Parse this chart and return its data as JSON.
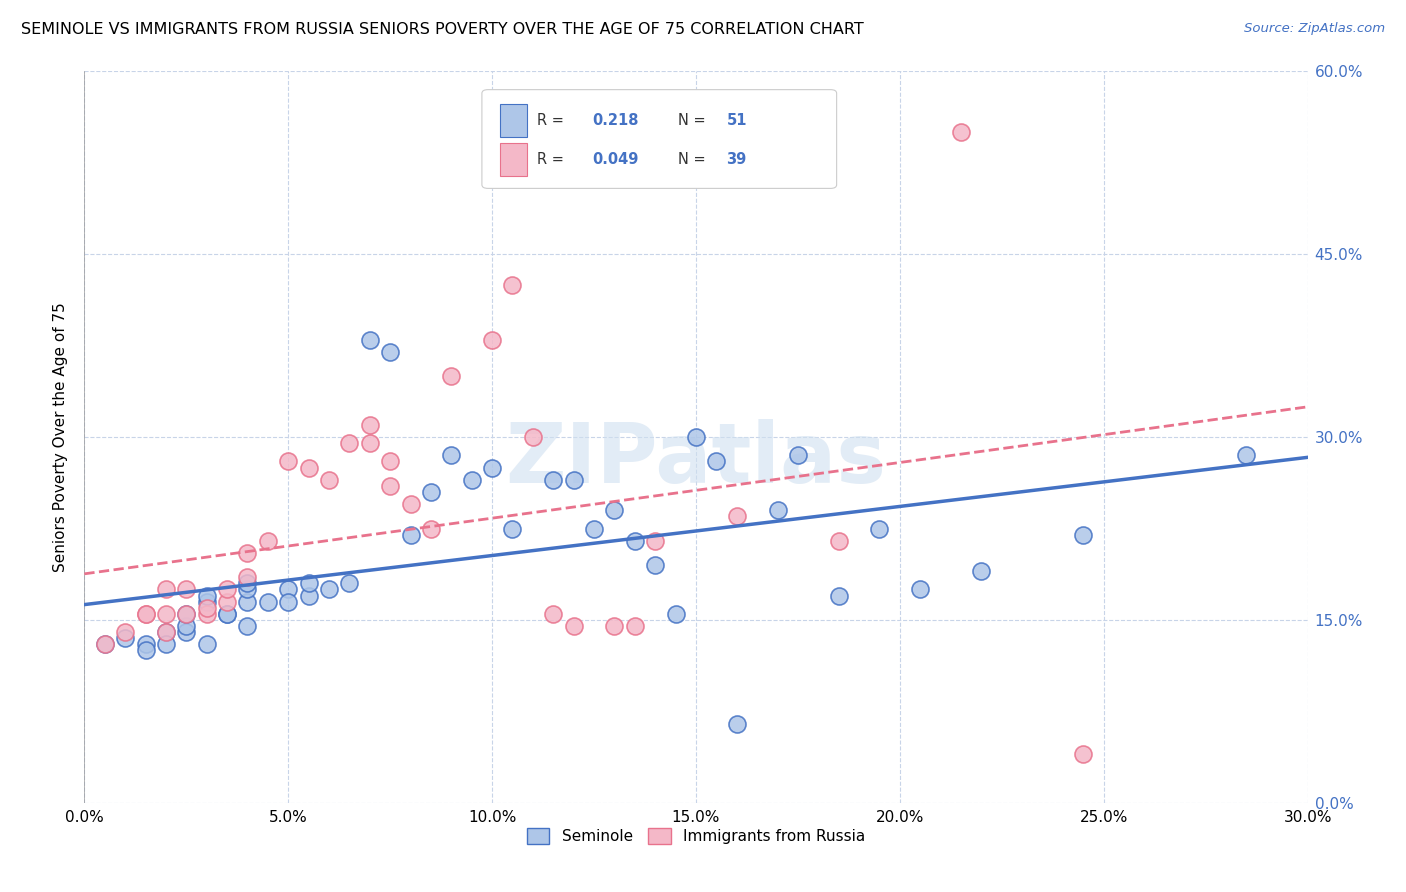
{
  "title": "SEMINOLE VS IMMIGRANTS FROM RUSSIA SENIORS POVERTY OVER THE AGE OF 75 CORRELATION CHART",
  "source": "Source: ZipAtlas.com",
  "xlim": [
    0.0,
    0.3
  ],
  "ylim": [
    0.0,
    0.6
  ],
  "ylabel": "Seniors Poverty Over the Age of 75",
  "legend_labels": [
    "Seminole",
    "Immigrants from Russia"
  ],
  "seminole_color": "#aec6e8",
  "russia_color": "#f4b8c8",
  "seminole_line_color": "#4472c4",
  "russia_line_color": "#e8728c",
  "watermark": "ZIPatlas",
  "seminole_x": [
    0.005,
    0.01,
    0.015,
    0.015,
    0.02,
    0.02,
    0.025,
    0.025,
    0.025,
    0.03,
    0.03,
    0.03,
    0.035,
    0.035,
    0.04,
    0.04,
    0.04,
    0.04,
    0.045,
    0.05,
    0.05,
    0.055,
    0.055,
    0.06,
    0.065,
    0.07,
    0.075,
    0.08,
    0.085,
    0.09,
    0.095,
    0.1,
    0.105,
    0.115,
    0.12,
    0.125,
    0.13,
    0.135,
    0.14,
    0.145,
    0.15,
    0.155,
    0.16,
    0.17,
    0.175,
    0.185,
    0.195,
    0.205,
    0.22,
    0.245,
    0.285
  ],
  "seminole_y": [
    0.13,
    0.135,
    0.13,
    0.125,
    0.14,
    0.13,
    0.14,
    0.145,
    0.155,
    0.13,
    0.165,
    0.17,
    0.155,
    0.155,
    0.145,
    0.165,
    0.175,
    0.18,
    0.165,
    0.175,
    0.165,
    0.17,
    0.18,
    0.175,
    0.18,
    0.38,
    0.37,
    0.22,
    0.255,
    0.285,
    0.265,
    0.275,
    0.225,
    0.265,
    0.265,
    0.225,
    0.24,
    0.215,
    0.195,
    0.155,
    0.3,
    0.28,
    0.065,
    0.24,
    0.285,
    0.17,
    0.225,
    0.175,
    0.19,
    0.22,
    0.285
  ],
  "russia_x": [
    0.005,
    0.01,
    0.015,
    0.015,
    0.02,
    0.02,
    0.02,
    0.025,
    0.025,
    0.03,
    0.03,
    0.035,
    0.035,
    0.04,
    0.04,
    0.045,
    0.05,
    0.055,
    0.06,
    0.065,
    0.07,
    0.07,
    0.075,
    0.075,
    0.08,
    0.085,
    0.09,
    0.1,
    0.105,
    0.11,
    0.115,
    0.12,
    0.13,
    0.135,
    0.14,
    0.16,
    0.185,
    0.215,
    0.245
  ],
  "russia_y": [
    0.13,
    0.14,
    0.155,
    0.155,
    0.14,
    0.155,
    0.175,
    0.155,
    0.175,
    0.155,
    0.16,
    0.165,
    0.175,
    0.185,
    0.205,
    0.215,
    0.28,
    0.275,
    0.265,
    0.295,
    0.295,
    0.31,
    0.26,
    0.28,
    0.245,
    0.225,
    0.35,
    0.38,
    0.425,
    0.3,
    0.155,
    0.145,
    0.145,
    0.145,
    0.215,
    0.235,
    0.215,
    0.55,
    0.04
  ]
}
